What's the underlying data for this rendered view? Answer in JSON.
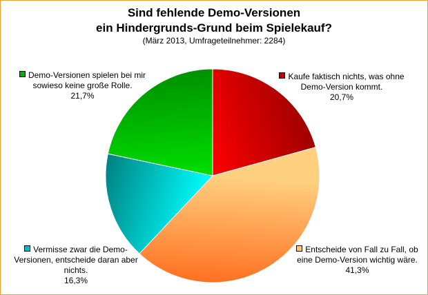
{
  "chart_data": {
    "type": "pie",
    "title_line1": "Sind fehlende Demo-Versionen",
    "title_line2": "ein Hindergrunds-Grund beim Spielekauf?",
    "subtitle": "(März 2013, Umfrageteilnehmer: 2284)",
    "slices": [
      {
        "label": "Kaufe faktisch nichts, was ohne Demo-Version kommt.",
        "value": 20.7,
        "pct_text": "20,7%",
        "color_light": "#ff0000",
        "color_dark": "#a00000"
      },
      {
        "label": "Entscheide von Fall zu Fall, ob eine Demo-Version wichtig wäre.",
        "value": 41.3,
        "pct_text": "41,3%",
        "color_light": "#ffd080",
        "color_dark": "#ff7020"
      },
      {
        "label": "Vermisse zwar die Demo-Versionen, entscheide daran aber nichts.",
        "value": 16.3,
        "pct_text": "16,3%",
        "color_light": "#00ffff",
        "color_dark": "#008080"
      },
      {
        "label": "Demo-Versionen spielen bei mir sowieso keine große Rolle.",
        "value": 21.7,
        "pct_text": "21,7%",
        "color_light": "#00e000",
        "color_dark": "#009000"
      }
    ],
    "legend_placement": "around"
  }
}
